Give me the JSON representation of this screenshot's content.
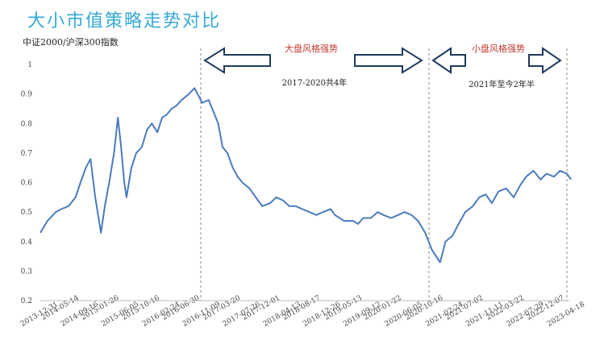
{
  "title": "大小市值策略走势对比",
  "chart_data": {
    "type": "line",
    "title": "大小市值策略走势对比",
    "ylabel": "中证2000/沪深300指数",
    "xlabel": "",
    "ylim": [
      0.2,
      1.0
    ],
    "yticks": [
      "0.2",
      "0.3",
      "0.4",
      "0.5",
      "0.6",
      "0.7",
      "0.8",
      "0.9",
      "1"
    ],
    "xticks": [
      "2013-12-31",
      "2014-05-14",
      "2014-09-16",
      "2015-01-26",
      "2015-06-05",
      "2015-10-16",
      "2016-02-24",
      "2016-06-30",
      "2016-11-09",
      "2017-03-20",
      "2017-07-26",
      "2017-12-01",
      "2018-04-13",
      "2018-08-17",
      "2018-12-26",
      "2019-05-13",
      "2019-09-12",
      "2020-01-22",
      "2020-06-05",
      "2020-10-16",
      "2021-02-24",
      "2021-07-02",
      "2021-11-11",
      "2022-03-22",
      "2022-07-29",
      "2022-12-07",
      "2023-04-18"
    ],
    "x": [
      "2013-12-31",
      "2014-02-15",
      "2014-04-10",
      "2014-05-14",
      "2014-07-01",
      "2014-08-15",
      "2014-09-16",
      "2014-10-20",
      "2014-11-20",
      "2014-12-20",
      "2015-01-26",
      "2015-02-20",
      "2015-03-20",
      "2015-04-20",
      "2015-05-15",
      "2015-06-05",
      "2015-06-25",
      "2015-07-10",
      "2015-08-10",
      "2015-09-10",
      "2015-10-16",
      "2015-11-20",
      "2015-12-20",
      "2016-01-25",
      "2016-02-24",
      "2016-03-25",
      "2016-04-25",
      "2016-05-25",
      "2016-06-30",
      "2016-08-15",
      "2016-09-20",
      "2016-11-09",
      "2016-12-20",
      "2017-01-20",
      "2017-02-20",
      "2017-03-20",
      "2017-04-20",
      "2017-05-25",
      "2017-06-25",
      "2017-07-26",
      "2017-09-10",
      "2017-10-20",
      "2017-12-01",
      "2018-01-20",
      "2018-03-01",
      "2018-04-13",
      "2018-05-25",
      "2018-07-05",
      "2018-08-17",
      "2018-10-01",
      "2018-11-15",
      "2018-12-26",
      "2019-02-15",
      "2019-03-15",
      "2019-05-13",
      "2019-07-10",
      "2019-08-10",
      "2019-09-12",
      "2019-11-01",
      "2019-12-15",
      "2020-01-22",
      "2020-03-10",
      "2020-04-25",
      "2020-06-05",
      "2020-07-20",
      "2020-09-01",
      "2020-10-16",
      "2020-12-01",
      "2021-01-20",
      "2021-02-05",
      "2021-02-24",
      "2021-04-10",
      "2021-05-20",
      "2021-07-02",
      "2021-08-20",
      "2021-09-30",
      "2021-11-11",
      "2021-12-20",
      "2022-02-01",
      "2022-03-22",
      "2022-05-10",
      "2022-06-20",
      "2022-07-29",
      "2022-09-15",
      "2022-10-30",
      "2022-12-07",
      "2023-01-25",
      "2023-03-05",
      "2023-04-18",
      "2023-05-15"
    ],
    "series": [
      {
        "values": [
          0.43,
          0.47,
          0.5,
          0.51,
          0.52,
          0.55,
          0.6,
          0.65,
          0.68,
          0.55,
          0.43,
          0.52,
          0.6,
          0.7,
          0.82,
          0.72,
          0.6,
          0.55,
          0.65,
          0.7,
          0.72,
          0.78,
          0.8,
          0.77,
          0.82,
          0.83,
          0.85,
          0.86,
          0.88,
          0.9,
          0.92,
          0.87,
          0.88,
          0.84,
          0.8,
          0.72,
          0.7,
          0.65,
          0.62,
          0.6,
          0.58,
          0.55,
          0.52,
          0.53,
          0.55,
          0.54,
          0.52,
          0.52,
          0.51,
          0.5,
          0.49,
          0.5,
          0.51,
          0.49,
          0.47,
          0.47,
          0.46,
          0.48,
          0.48,
          0.5,
          0.49,
          0.48,
          0.49,
          0.5,
          0.49,
          0.47,
          0.43,
          0.37,
          0.33,
          0.36,
          0.4,
          0.42,
          0.46,
          0.5,
          0.52,
          0.55,
          0.56,
          0.53,
          0.57,
          0.58,
          0.55,
          0.59,
          0.62,
          0.64,
          0.61,
          0.63,
          0.62,
          0.64,
          0.63,
          0.61
        ]
      }
    ],
    "line_color": "#4a7bbf",
    "annotations": {
      "large_cap": {
        "label": "大盘风格强势",
        "note": "2017-2020共4年"
      },
      "small_cap": {
        "label": "小盘风格强势",
        "note": "2021年至今2年半"
      }
    },
    "grid": false,
    "legend": "none"
  }
}
